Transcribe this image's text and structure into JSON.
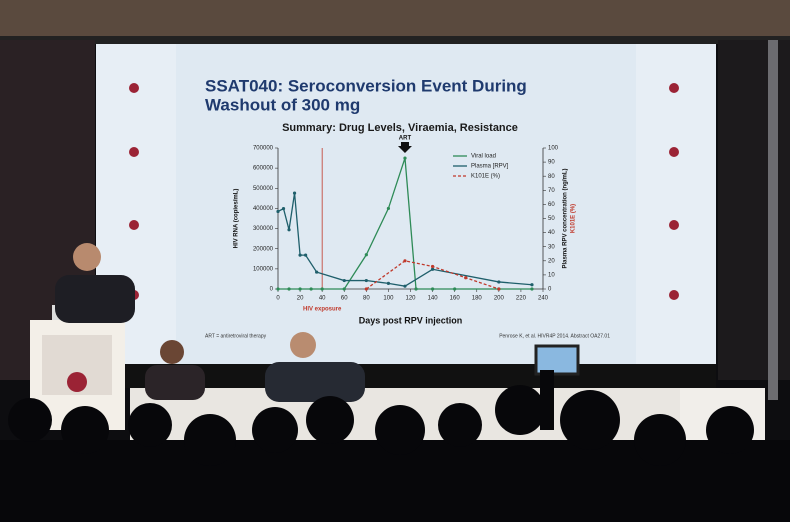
{
  "slide": {
    "title": [
      "SSAT040: Seroconversion Event During",
      "Washout of 300 mg"
    ],
    "subtitle": "Summary: Drug Levels, Viraemia, Resistance",
    "footnote": "ART = antiretroviral therapy",
    "citation": "Penrose K, et al. HIVR4P 2014. Abstract OA27.01"
  },
  "chart_data": {
    "type": "line",
    "x_label": "Days post RPV injection",
    "y_label": "HIV RNA (copies/mL)",
    "y2_label": [
      "Plasma RPV concentration (ng/mL)",
      "K101E (%)"
    ],
    "xlim": [
      0,
      240
    ],
    "xticks": [
      0,
      20,
      40,
      60,
      80,
      100,
      120,
      140,
      160,
      180,
      200,
      220,
      240
    ],
    "ylim": [
      0,
      700000
    ],
    "yticks": [
      0,
      100000,
      200000,
      300000,
      400000,
      500000,
      600000,
      700000
    ],
    "y2lim": [
      0,
      100
    ],
    "y2ticks": [
      0,
      10,
      20,
      30,
      40,
      50,
      60,
      70,
      80,
      90,
      100
    ],
    "annotations": [
      {
        "text": "ART",
        "x": 115
      },
      {
        "text": "HIV exposure",
        "x": 40
      }
    ],
    "legend": "upper right",
    "series": [
      {
        "name": "Viral load",
        "color": "#2e8b57",
        "dash": false,
        "x": [
          0,
          10,
          20,
          30,
          40,
          60,
          80,
          100,
          115,
          125,
          140,
          160,
          200,
          230
        ],
        "values": [
          0,
          0,
          0,
          0,
          0,
          0,
          170000,
          400000,
          650000,
          0,
          0,
          0,
          0,
          0
        ]
      },
      {
        "name": "Plasma [RPV]",
        "color": "#1f5f6b",
        "dash": false,
        "axis": "y2",
        "x": [
          0,
          5,
          10,
          15,
          20,
          25,
          35,
          60,
          80,
          100,
          115,
          140,
          200,
          230
        ],
        "values": [
          55,
          57,
          42,
          68,
          24,
          24,
          12,
          6,
          6,
          4,
          2,
          14,
          5,
          3
        ]
      },
      {
        "name": "K101E (%)",
        "color": "#c0392b",
        "dash": true,
        "axis": "y2",
        "x": [
          80,
          115,
          140,
          170,
          200
        ],
        "values": [
          0,
          20,
          16,
          8,
          0
        ]
      }
    ]
  }
}
